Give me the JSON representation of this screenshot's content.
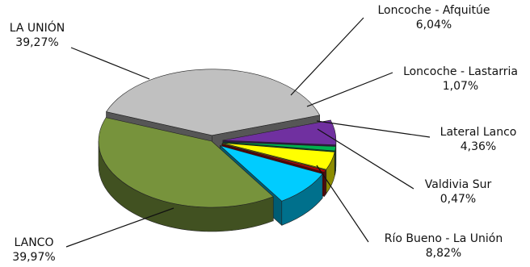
{
  "chart_data": {
    "type": "pie",
    "three_d": true,
    "legend": "none",
    "slices": [
      {
        "name": "LANCO",
        "value": 39.97,
        "label": "39,97%",
        "color": "#77933c"
      },
      {
        "name": "LA UNIÓN",
        "value": 39.27,
        "label": "39,27%",
        "color": "#c0c0c0"
      },
      {
        "name": "Loncoche - Afquitúe",
        "value": 6.04,
        "label": "6,04%",
        "color": "#7030a0"
      },
      {
        "name": "Loncoche - Lastarria",
        "value": 1.07,
        "label": "1,07%",
        "color": "#00b050"
      },
      {
        "name": "Lateral Lanco",
        "value": 4.36,
        "label": "4,36%",
        "color": "#ffff00"
      },
      {
        "name": "Valdivia Sur",
        "value": 0.47,
        "label": "0,47%",
        "color": "#c00000"
      },
      {
        "name": "Río Bueno - La Unión",
        "value": 8.82,
        "label": "8,82%",
        "color": "#00ccff"
      }
    ]
  }
}
